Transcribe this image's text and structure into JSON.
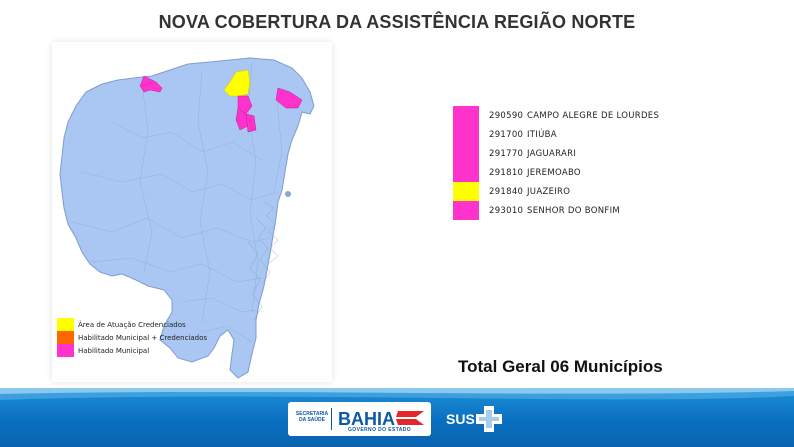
{
  "title": "NOVA COBERTURA DA ASSISTÊNCIA REGIÃO NORTE",
  "map": {
    "colors": {
      "base": "#a9c7f2",
      "border": "#7f9ccc",
      "yellow": "#ffff00",
      "magenta": "#ff33cc",
      "orange": "#ff6600"
    }
  },
  "municipalities": [
    {
      "code": "290590",
      "name": "CAMPO ALEGRE DE LOURDES",
      "color": "#ff33cc"
    },
    {
      "code": "291700",
      "name": "ITIÚBA",
      "color": "#ff33cc"
    },
    {
      "code": "291770",
      "name": "JAGUARARI",
      "color": "#ff33cc"
    },
    {
      "code": "291810",
      "name": "JEREMOABO",
      "color": "#ff33cc"
    },
    {
      "code": "291840",
      "name": "JUAZEIRO",
      "color": "#ffff00"
    },
    {
      "code": "293010",
      "name": "SENHOR DO BONFIM",
      "color": "#ff33cc"
    }
  ],
  "map_legend": [
    {
      "label": "Área de Atuação Credenciados",
      "color": "#ffff00"
    },
    {
      "label": "Habilitado Municipal + Credenciados",
      "color": "#ff6600"
    },
    {
      "label": "Habilitado Municipal",
      "color": "#ff33cc"
    }
  ],
  "total": "Total Geral 06 Municípios",
  "footer": {
    "secretaria": "SECRETARIA DA SAÚDE",
    "bahia": "BAHIA",
    "governo": "GOVERNO DO ESTADO",
    "sus": "SUS"
  }
}
